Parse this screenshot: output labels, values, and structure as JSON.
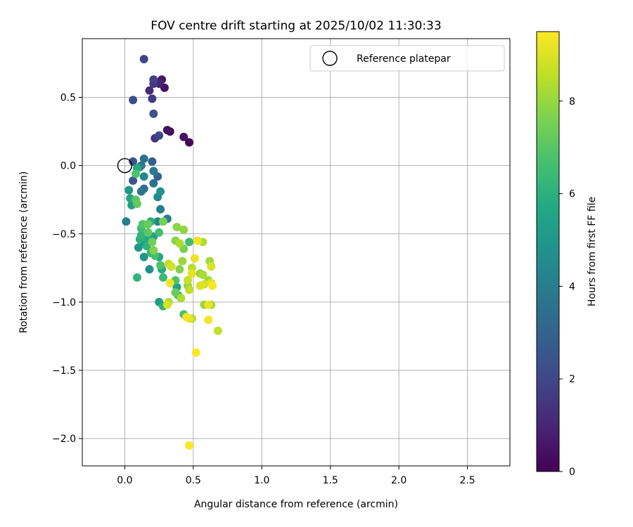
{
  "chart_data": {
    "type": "scatter",
    "title": "FOV centre drift starting at 2025/10/02 11:30:33",
    "xlabel": "Angular distance from reference (arcmin)",
    "ylabel": "Rotation from reference (arcmin)",
    "xlim": [
      -0.31,
      2.81
    ],
    "ylim": [
      -2.2,
      0.93
    ],
    "xticks": [
      0.0,
      0.5,
      1.0,
      1.5,
      2.0,
      2.5
    ],
    "xtick_labels": [
      "0.0",
      "0.5",
      "1.0",
      "1.5",
      "2.0",
      "2.5"
    ],
    "yticks": [
      0.5,
      0.0,
      -0.5,
      -1.0,
      -1.5,
      -2.0
    ],
    "ytick_labels": [
      "0.5",
      "0.0",
      "−0.5",
      "−1.0",
      "−1.5",
      "−2.0"
    ],
    "grid": true,
    "colorbar": {
      "label": "Hours from first FF file",
      "range": [
        0,
        9.5
      ],
      "colormap": "viridis",
      "ticks": [
        0,
        2,
        4,
        6,
        8
      ],
      "tick_labels": [
        "0",
        "2",
        "4",
        "6",
        "8"
      ]
    },
    "reference": {
      "label": "Reference platepar",
      "x": 0.0,
      "y": 0.0
    },
    "legend": {
      "label": "Reference platepar",
      "location": "top-right"
    },
    "points": [
      {
        "x": 0.14,
        "y": 0.78,
        "t": 1.9
      },
      {
        "x": 0.21,
        "y": 0.63,
        "t": 1.8
      },
      {
        "x": 0.27,
        "y": 0.63,
        "t": 0.6
      },
      {
        "x": 0.21,
        "y": 0.6,
        "t": 1.5
      },
      {
        "x": 0.25,
        "y": 0.6,
        "t": 0.9
      },
      {
        "x": 0.18,
        "y": 0.55,
        "t": 1.2
      },
      {
        "x": 0.29,
        "y": 0.57,
        "t": 0.4
      },
      {
        "x": 0.06,
        "y": 0.48,
        "t": 2.3
      },
      {
        "x": 0.2,
        "y": 0.49,
        "t": 1.6
      },
      {
        "x": 0.21,
        "y": 0.38,
        "t": 2.4
      },
      {
        "x": 0.31,
        "y": 0.26,
        "t": 0.4
      },
      {
        "x": 0.33,
        "y": 0.25,
        "t": 0.3
      },
      {
        "x": 0.22,
        "y": 0.2,
        "t": 1.4
      },
      {
        "x": 0.25,
        "y": 0.22,
        "t": 2.0
      },
      {
        "x": 0.43,
        "y": 0.21,
        "t": 0.5
      },
      {
        "x": 0.47,
        "y": 0.17,
        "t": 0.2
      },
      {
        "x": 0.14,
        "y": 0.05,
        "t": 3.5
      },
      {
        "x": 0.06,
        "y": 0.03,
        "t": 2.6
      },
      {
        "x": 0.2,
        "y": 0.03,
        "t": 2.9
      },
      {
        "x": 0.09,
        "y": -0.02,
        "t": 5.8
      },
      {
        "x": 0.11,
        "y": -0.01,
        "t": 4.2
      },
      {
        "x": 0.12,
        "y": 0.0,
        "t": 3.3
      },
      {
        "x": 0.08,
        "y": -0.06,
        "t": 6.8
      },
      {
        "x": 0.21,
        "y": -0.04,
        "t": 3.8
      },
      {
        "x": 0.14,
        "y": -0.08,
        "t": 4.4
      },
      {
        "x": 0.24,
        "y": -0.08,
        "t": 3.0
      },
      {
        "x": 0.06,
        "y": -0.11,
        "t": 2.5
      },
      {
        "x": 0.21,
        "y": -0.13,
        "t": 3.6
      },
      {
        "x": 0.14,
        "y": -0.17,
        "t": 3.4
      },
      {
        "x": 0.12,
        "y": -0.19,
        "t": 3.7
      },
      {
        "x": 0.03,
        "y": -0.18,
        "t": 5.0
      },
      {
        "x": 0.26,
        "y": -0.19,
        "t": 4.8
      },
      {
        "x": 0.24,
        "y": -0.23,
        "t": 4.5
      },
      {
        "x": 0.04,
        "y": -0.24,
        "t": 5.5
      },
      {
        "x": 0.08,
        "y": -0.25,
        "t": 7.0
      },
      {
        "x": 0.09,
        "y": -0.28,
        "t": 7.2
      },
      {
        "x": 0.05,
        "y": -0.29,
        "t": 5.2
      },
      {
        "x": 0.26,
        "y": -0.32,
        "t": 4.0
      },
      {
        "x": 0.01,
        "y": -0.41,
        "t": 4.1
      },
      {
        "x": 0.24,
        "y": -0.41,
        "t": 4.3
      },
      {
        "x": 0.31,
        "y": -0.39,
        "t": 3.9
      },
      {
        "x": 0.28,
        "y": -0.41,
        "t": 7.5
      },
      {
        "x": 0.13,
        "y": -0.43,
        "t": 6.9
      },
      {
        "x": 0.17,
        "y": -0.43,
        "t": 7.3
      },
      {
        "x": 0.12,
        "y": -0.46,
        "t": 6.4
      },
      {
        "x": 0.19,
        "y": -0.41,
        "t": 5.9
      },
      {
        "x": 0.38,
        "y": -0.45,
        "t": 7.8
      },
      {
        "x": 0.43,
        "y": -0.47,
        "t": 7.9
      },
      {
        "x": 0.17,
        "y": -0.49,
        "t": 7.1
      },
      {
        "x": 0.25,
        "y": -0.49,
        "t": 6.6
      },
      {
        "x": 0.12,
        "y": -0.51,
        "t": 6.2
      },
      {
        "x": 0.15,
        "y": -0.53,
        "t": 5.6
      },
      {
        "x": 0.21,
        "y": -0.52,
        "t": 5.4
      },
      {
        "x": 0.11,
        "y": -0.54,
        "t": 6.0
      },
      {
        "x": 0.37,
        "y": -0.55,
        "t": 7.8
      },
      {
        "x": 0.4,
        "y": -0.57,
        "t": 8.3
      },
      {
        "x": 0.47,
        "y": -0.56,
        "t": 6.5
      },
      {
        "x": 0.53,
        "y": -0.55,
        "t": 9.3
      },
      {
        "x": 0.57,
        "y": -0.56,
        "t": 8.4
      },
      {
        "x": 0.43,
        "y": -0.61,
        "t": 7.6
      },
      {
        "x": 0.14,
        "y": -0.56,
        "t": 4.6
      },
      {
        "x": 0.2,
        "y": -0.56,
        "t": 7.4
      },
      {
        "x": 0.16,
        "y": -0.59,
        "t": 6.1
      },
      {
        "x": 0.1,
        "y": -0.6,
        "t": 5.1
      },
      {
        "x": 0.21,
        "y": -0.62,
        "t": 7.7
      },
      {
        "x": 0.19,
        "y": -0.64,
        "t": 6.3
      },
      {
        "x": 0.22,
        "y": -0.66,
        "t": 6.7
      },
      {
        "x": 0.14,
        "y": -0.67,
        "t": 4.9
      },
      {
        "x": 0.25,
        "y": -0.67,
        "t": 5.7
      },
      {
        "x": 0.51,
        "y": -0.68,
        "t": 9.2
      },
      {
        "x": 0.42,
        "y": -0.7,
        "t": 8.1
      },
      {
        "x": 0.62,
        "y": -0.7,
        "t": 8.2
      },
      {
        "x": 0.32,
        "y": -0.72,
        "t": 8.6
      },
      {
        "x": 0.26,
        "y": -0.73,
        "t": 6.9
      },
      {
        "x": 0.34,
        "y": -0.74,
        "t": 8.8
      },
      {
        "x": 0.49,
        "y": -0.75,
        "t": 8.5
      },
      {
        "x": 0.63,
        "y": -0.74,
        "t": 9.0
      },
      {
        "x": 0.18,
        "y": -0.76,
        "t": 4.7
      },
      {
        "x": 0.27,
        "y": -0.76,
        "t": 5.8
      },
      {
        "x": 0.4,
        "y": -0.76,
        "t": 7.7
      },
      {
        "x": 0.55,
        "y": -0.79,
        "t": 8.0
      },
      {
        "x": 0.57,
        "y": -0.8,
        "t": 8.3
      },
      {
        "x": 0.49,
        "y": -0.79,
        "t": 9.1
      },
      {
        "x": 0.09,
        "y": -0.82,
        "t": 6.2
      },
      {
        "x": 0.28,
        "y": -0.82,
        "t": 6.4
      },
      {
        "x": 0.37,
        "y": -0.84,
        "t": 6.8
      },
      {
        "x": 0.46,
        "y": -0.84,
        "t": 8.7
      },
      {
        "x": 0.61,
        "y": -0.84,
        "t": 8.1
      },
      {
        "x": 0.33,
        "y": -0.86,
        "t": 9.3
      },
      {
        "x": 0.63,
        "y": -0.86,
        "t": 9.1
      },
      {
        "x": 0.64,
        "y": -0.88,
        "t": 9.4
      },
      {
        "x": 0.55,
        "y": -0.88,
        "t": 9.0
      },
      {
        "x": 0.58,
        "y": -0.87,
        "t": 8.9
      },
      {
        "x": 0.38,
        "y": -0.89,
        "t": 5.5
      },
      {
        "x": 0.46,
        "y": -0.88,
        "t": 7.9
      },
      {
        "x": 0.47,
        "y": -0.91,
        "t": 8.6
      },
      {
        "x": 0.37,
        "y": -0.93,
        "t": 7.3
      },
      {
        "x": 0.39,
        "y": -0.95,
        "t": 6.1
      },
      {
        "x": 0.41,
        "y": -0.97,
        "t": 8.3
      },
      {
        "x": 0.25,
        "y": -1.0,
        "t": 5.3
      },
      {
        "x": 0.32,
        "y": -1.0,
        "t": 8.4
      },
      {
        "x": 0.28,
        "y": -1.03,
        "t": 6.0
      },
      {
        "x": 0.31,
        "y": -1.02,
        "t": 8.9
      },
      {
        "x": 0.58,
        "y": -1.02,
        "t": 8.0
      },
      {
        "x": 0.61,
        "y": -1.02,
        "t": 9.2
      },
      {
        "x": 0.63,
        "y": -1.02,
        "t": 8.2
      },
      {
        "x": 0.43,
        "y": -1.09,
        "t": 6.7
      },
      {
        "x": 0.45,
        "y": -1.11,
        "t": 9.3
      },
      {
        "x": 0.49,
        "y": -1.12,
        "t": 8.4
      },
      {
        "x": 0.47,
        "y": -1.12,
        "t": 9.2
      },
      {
        "x": 0.61,
        "y": -1.13,
        "t": 9.4
      },
      {
        "x": 0.68,
        "y": -1.21,
        "t": 8.6
      },
      {
        "x": 0.52,
        "y": -1.37,
        "t": 9.5
      },
      {
        "x": 0.47,
        "y": -2.05,
        "t": 9.5
      }
    ]
  }
}
